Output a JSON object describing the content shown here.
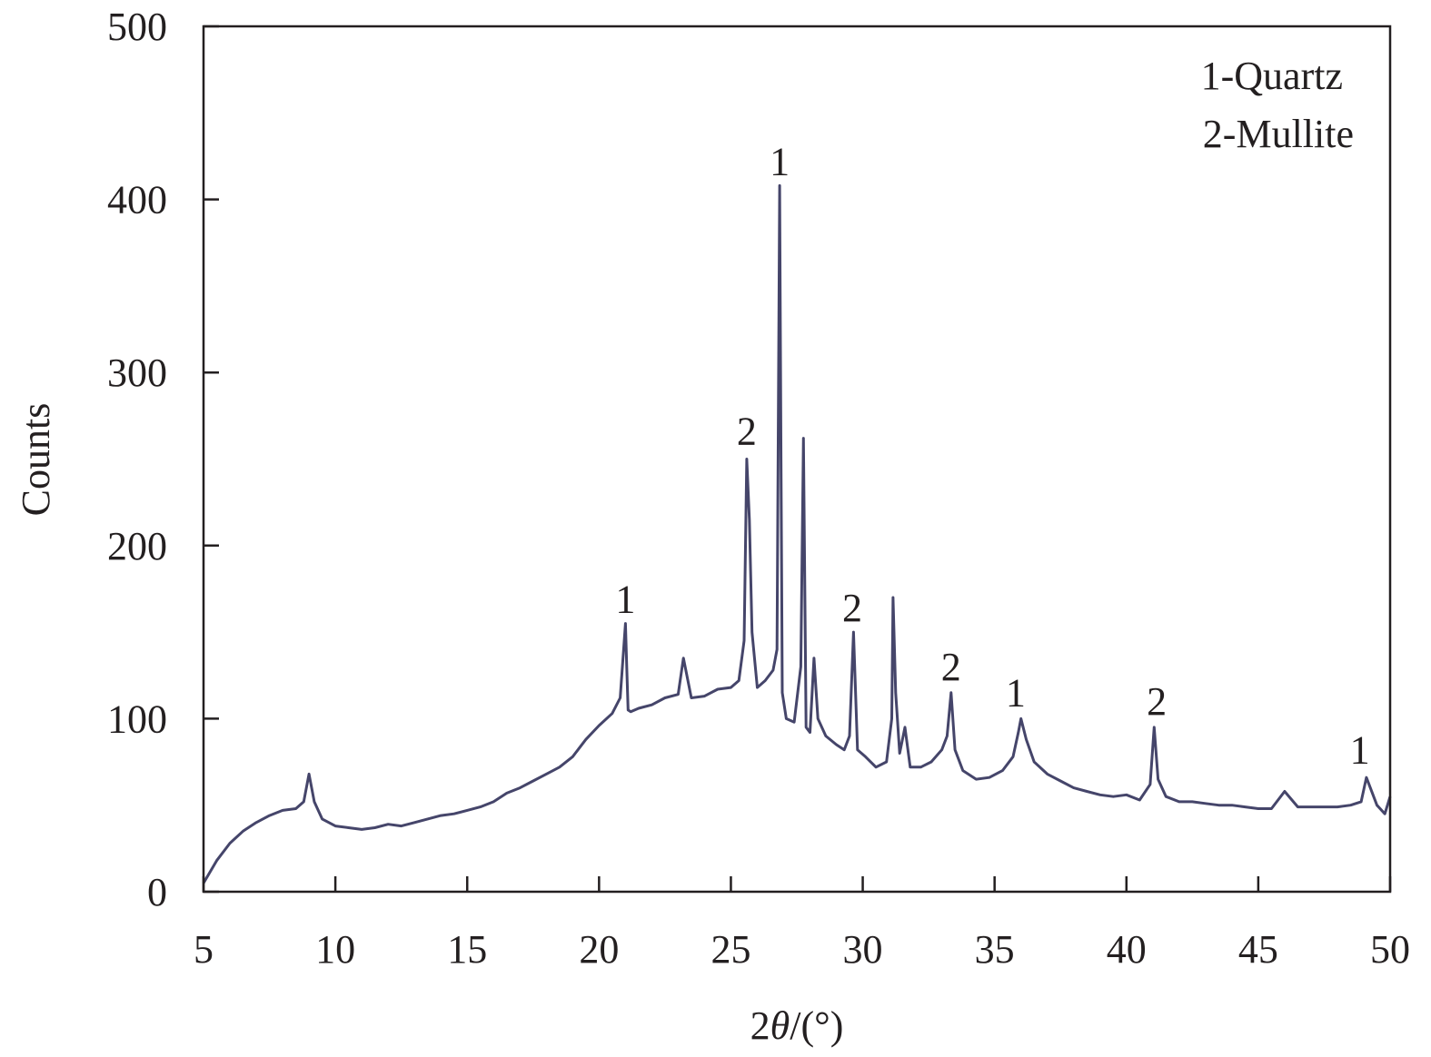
{
  "chart_data": {
    "type": "line",
    "xlabel_prefix": "2",
    "xlabel_symbol": "θ",
    "xlabel_suffix": "/(°)",
    "ylabel": "Counts",
    "xlim": [
      5,
      50
    ],
    "ylim": [
      0,
      500
    ],
    "x_ticks": [
      5,
      10,
      15,
      20,
      25,
      30,
      35,
      40,
      45,
      50
    ],
    "y_ticks": [
      0,
      100,
      200,
      300,
      400,
      500
    ],
    "grid": false,
    "line_color": "#45456a",
    "legend": {
      "placement": "top-right",
      "entries": [
        "1-Quartz",
        "2-Mullite"
      ]
    },
    "series": [
      {
        "x": [
          5.0,
          5.5,
          6.0,
          6.5,
          7.0,
          7.5,
          8.0,
          8.5,
          8.8,
          9.0,
          9.2,
          9.5,
          10.0,
          10.5,
          11.0,
          11.5,
          12.0,
          12.5,
          13.0,
          13.5,
          14.0,
          14.5,
          15.0,
          15.5,
          16.0,
          16.5,
          17.0,
          17.5,
          18.0,
          18.5,
          19.0,
          19.5,
          20.0,
          20.5,
          20.8,
          21.0,
          21.05,
          21.1,
          21.2,
          21.5,
          22.0,
          22.5,
          23.0,
          23.2,
          23.5,
          24.0,
          24.5,
          25.0,
          25.3,
          25.5,
          25.6,
          25.7,
          25.8,
          26.0,
          26.3,
          26.6,
          26.75,
          26.85,
          26.9,
          26.95,
          27.1,
          27.4,
          27.65,
          27.75,
          27.85,
          28.0,
          28.15,
          28.3,
          28.6,
          29.0,
          29.3,
          29.5,
          29.65,
          29.8,
          30.1,
          30.5,
          30.9,
          31.1,
          31.15,
          31.25,
          31.4,
          31.6,
          31.8,
          32.2,
          32.6,
          33.0,
          33.2,
          33.35,
          33.5,
          33.8,
          34.3,
          34.8,
          35.3,
          35.7,
          35.9,
          36.0,
          36.2,
          36.5,
          37.0,
          37.5,
          38.0,
          38.5,
          39.0,
          39.5,
          40.0,
          40.5,
          40.9,
          41.05,
          41.2,
          41.5,
          42.0,
          42.5,
          43.0,
          43.5,
          44.0,
          44.5,
          45.0,
          45.5,
          46.0,
          46.5,
          47.0,
          47.5,
          48.0,
          48.5,
          48.9,
          49.1,
          49.5,
          49.8,
          50.0
        ],
        "y": [
          5,
          18,
          28,
          35,
          40,
          44,
          47,
          48,
          52,
          68,
          52,
          42,
          38,
          37,
          36,
          37,
          39,
          38,
          40,
          42,
          44,
          45,
          47,
          49,
          52,
          57,
          60,
          64,
          68,
          72,
          78,
          88,
          96,
          103,
          112,
          155,
          130,
          105,
          104,
          106,
          108,
          112,
          114,
          135,
          112,
          113,
          117,
          118,
          122,
          145,
          250,
          215,
          150,
          118,
          122,
          128,
          140,
          408,
          250,
          115,
          100,
          98,
          130,
          262,
          95,
          92,
          135,
          100,
          90,
          85,
          82,
          90,
          150,
          82,
          78,
          72,
          75,
          100,
          170,
          115,
          80,
          95,
          72,
          72,
          75,
          82,
          90,
          115,
          82,
          70,
          65,
          66,
          70,
          78,
          92,
          100,
          88,
          75,
          68,
          64,
          60,
          58,
          56,
          55,
          56,
          53,
          62,
          95,
          65,
          55,
          52,
          52,
          51,
          50,
          50,
          49,
          48,
          48,
          58,
          49,
          49,
          49,
          49,
          50,
          52,
          66,
          50,
          45,
          55
        ]
      }
    ],
    "peak_labels": [
      {
        "x": 21.0,
        "y": 155,
        "text": "1"
      },
      {
        "x": 25.6,
        "y": 252,
        "text": "2"
      },
      {
        "x": 26.85,
        "y": 408,
        "text": "1"
      },
      {
        "x": 29.6,
        "y": 150,
        "text": "2"
      },
      {
        "x": 33.35,
        "y": 116,
        "text": "2"
      },
      {
        "x": 35.8,
        "y": 101,
        "text": "1"
      },
      {
        "x": 41.15,
        "y": 96,
        "text": "2"
      },
      {
        "x": 48.85,
        "y": 68,
        "text": "1"
      }
    ]
  }
}
